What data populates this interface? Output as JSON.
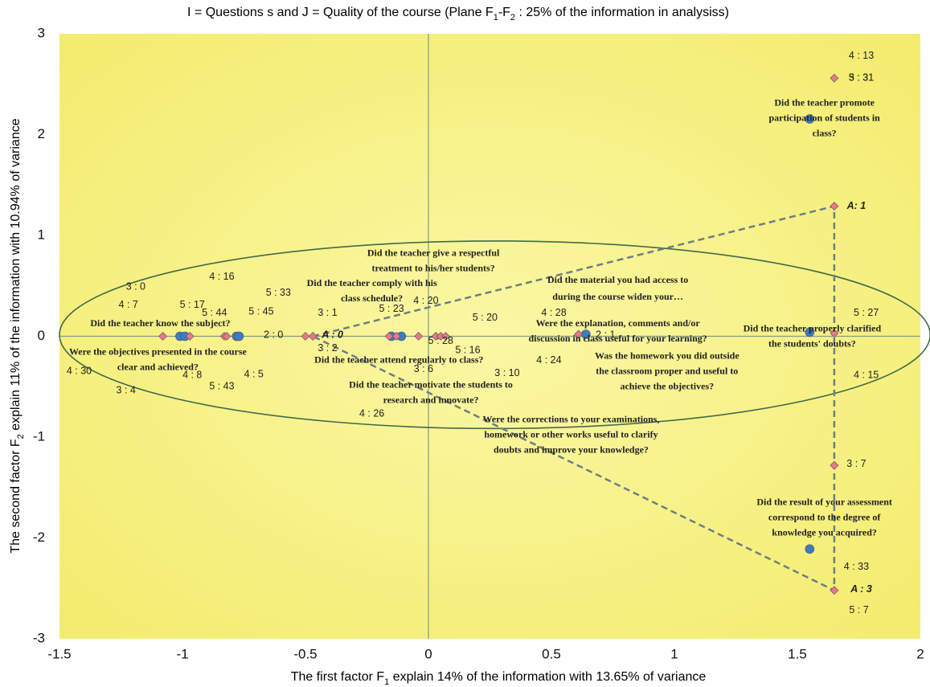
{
  "chart_data": {
    "type": "scatter",
    "title": [
      "I = Questions s and J = Quality of the course (Plane F",
      "1",
      "-F",
      "2",
      " : 25% of the information in analysiss)"
    ],
    "x_label": [
      "The first factor F",
      "1",
      " explain 14% of the information with 13.65% of variance"
    ],
    "y_label": [
      "The second factor F",
      "2",
      " explain 11% of the information with 10.94% of variance"
    ],
    "xlim": [
      -1.5,
      2
    ],
    "ylim": [
      -3,
      3
    ],
    "xticks": [
      -1.5,
      -1,
      -0.5,
      0,
      0.5,
      1,
      1.5,
      2
    ],
    "yticks": [
      -3,
      -2,
      -1,
      0,
      1,
      2,
      3
    ],
    "series": [
      {
        "color": "#3b7cc4",
        "marker": "circle",
        "x": [
          -1.01,
          -0.99,
          -0.78,
          -0.77,
          -0.15,
          -0.11,
          0.64,
          1.55,
          1.55,
          1.55
        ],
        "y": [
          0,
          0,
          0,
          0,
          0,
          0,
          0.02,
          0.04,
          2.155,
          -2.11
        ]
      },
      {
        "color": "#e8788a",
        "marker": "diamond",
        "x": [
          -1.08,
          -0.97,
          -0.83,
          -0.82,
          -0.5,
          -0.47,
          -0.16,
          -0.13,
          -0.04,
          0.03,
          0.05,
          0.07,
          0.61,
          1.65,
          1.65,
          1.65,
          1.65,
          1.65
        ],
        "y": [
          0,
          0,
          0,
          0,
          0,
          0,
          0,
          0,
          0,
          0,
          0,
          0,
          0.02,
          2.56,
          1.29,
          0.03,
          -1.28,
          -2.52
        ]
      }
    ],
    "ellipse": {
      "cx": 0.27,
      "cy": 0.015,
      "rx": 1.77,
      "ry": 0.93,
      "color": "#3f6b4a"
    },
    "triangle": {
      "x": [
        -0.47,
        1.65,
        1.65,
        -0.47
      ],
      "y": [
        0,
        1.29,
        -2.52,
        0
      ],
      "color": "#6b7f86"
    },
    "annotations": [
      {
        "text": "4 : 13",
        "x": 1.76,
        "y": 2.78
      },
      {
        "text": "5 : 31",
        "x": 1.76,
        "y": 2.56
      },
      {
        "text": "3 : 31",
        "x": 1.76,
        "y": 2.56
      },
      {
        "text": "A: 1",
        "x": 1.74,
        "y": 1.29,
        "bold": true
      },
      {
        "text": "5 : 27",
        "x": 1.78,
        "y": 0.23
      },
      {
        "text": "4 : 15",
        "x": 1.78,
        "y": -0.39
      },
      {
        "text": "3 : 7",
        "x": 1.74,
        "y": -1.27
      },
      {
        "text": "4 : 33",
        "x": 1.74,
        "y": -2.29
      },
      {
        "text": "A : 3",
        "x": 1.76,
        "y": -2.51,
        "bold": true
      },
      {
        "text": "5 : 7",
        "x": 1.75,
        "y": -2.72
      },
      {
        "text": "4 : 16",
        "x": -0.84,
        "y": 0.59
      },
      {
        "text": "3 : 0",
        "x": -1.19,
        "y": 0.49
      },
      {
        "text": "5 : 33",
        "x": -0.61,
        "y": 0.43
      },
      {
        "text": "4 : 7",
        "x": -1.22,
        "y": 0.31
      },
      {
        "text": "5 : 17",
        "x": -0.96,
        "y": 0.31
      },
      {
        "text": "5 : 44",
        "x": -0.87,
        "y": 0.23
      },
      {
        "text": "5 : 45",
        "x": -0.68,
        "y": 0.24
      },
      {
        "text": "3 : 1",
        "x": -0.41,
        "y": 0.23
      },
      {
        "text": "5 : 23",
        "x": -0.15,
        "y": 0.27
      },
      {
        "text": "4 : 20",
        "x": -0.01,
        "y": 0.35
      },
      {
        "text": "4 : 28",
        "x": 0.51,
        "y": 0.23
      },
      {
        "text": "5 : 20",
        "x": 0.23,
        "y": 0.18
      },
      {
        "text": "2 : 0",
        "x": -0.63,
        "y": 0.01
      },
      {
        "text": "A : 0",
        "x": -0.39,
        "y": 0.01,
        "bold": true
      },
      {
        "text": "2 : 1",
        "x": 0.72,
        "y": 0.01
      },
      {
        "text": "3 : 2",
        "x": -0.41,
        "y": -0.12
      },
      {
        "text": "5 : 28",
        "x": 0.05,
        "y": -0.05
      },
      {
        "text": "5 : 16",
        "x": 0.16,
        "y": -0.14
      },
      {
        "text": "4 : 24",
        "x": 0.49,
        "y": -0.24
      },
      {
        "text": "3 : 6",
        "x": -0.02,
        "y": -0.33
      },
      {
        "text": "3 : 10",
        "x": 0.32,
        "y": -0.37
      },
      {
        "text": "4 : 30",
        "x": -1.42,
        "y": -0.35
      },
      {
        "text": "4 : 8",
        "x": -0.96,
        "y": -0.39
      },
      {
        "text": "4 : 5",
        "x": -0.71,
        "y": -0.38
      },
      {
        "text": "3 : 4",
        "x": -1.23,
        "y": -0.54
      },
      {
        "text": "5 : 43",
        "x": -0.84,
        "y": -0.5
      },
      {
        "text": "4 : 26",
        "x": -0.23,
        "y": -0.77
      }
    ],
    "questions": [
      {
        "lines": [
          "Did the teacher promote",
          "participation of students in",
          "class?"
        ],
        "x": 1.61,
        "y": 2.31
      },
      {
        "lines": [
          "Did the teacher give a respectful",
          "treatment to his/her students?"
        ],
        "x": 0.02,
        "y": 0.82
      },
      {
        "lines": [
          "Did the teacher comply with his",
          "class schedule?"
        ],
        "x": -0.23,
        "y": 0.52
      },
      {
        "lines": [
          "Did the material you had access to",
          "during the course widen your…"
        ],
        "x": 0.77,
        "y": 0.55,
        "large": true
      },
      {
        "lines": [
          "Did the teacher know the subject?"
        ],
        "x": -1.09,
        "y": 0.12
      },
      {
        "lines": [
          "Were the explanation, comments and/or",
          "discussion in class useful for your learning?"
        ],
        "x": 0.77,
        "y": 0.12
      },
      {
        "lines": [
          "Did the teacher properly clarified",
          "the students' doubts?"
        ],
        "x": 1.56,
        "y": 0.07
      },
      {
        "lines": [
          "Were the objectives presented in the course",
          "clear and achieved?"
        ],
        "x": -1.1,
        "y": -0.16
      },
      {
        "lines": [
          "Did the teacher attend regularly to class?"
        ],
        "x": -0.12,
        "y": -0.24
      },
      {
        "lines": [
          "Was the homework you did outside",
          "the classroom proper and useful to",
          "achieve the objectives?"
        ],
        "x": 0.97,
        "y": -0.2
      },
      {
        "lines": [
          "Did the teacher motivate the students to",
          "research and innovate?"
        ],
        "x": 0.01,
        "y": -0.49
      },
      {
        "lines": [
          "Were the corrections to your examinations,",
          "homework or other works useful to clarify",
          "doubts and improve your knowledge?"
        ],
        "x": 0.58,
        "y": -0.83
      },
      {
        "lines": [
          "Did the result of your assessment",
          "correspond to the degree of",
          "knowledge you acquired?"
        ],
        "x": 1.61,
        "y": -1.65
      }
    ]
  }
}
